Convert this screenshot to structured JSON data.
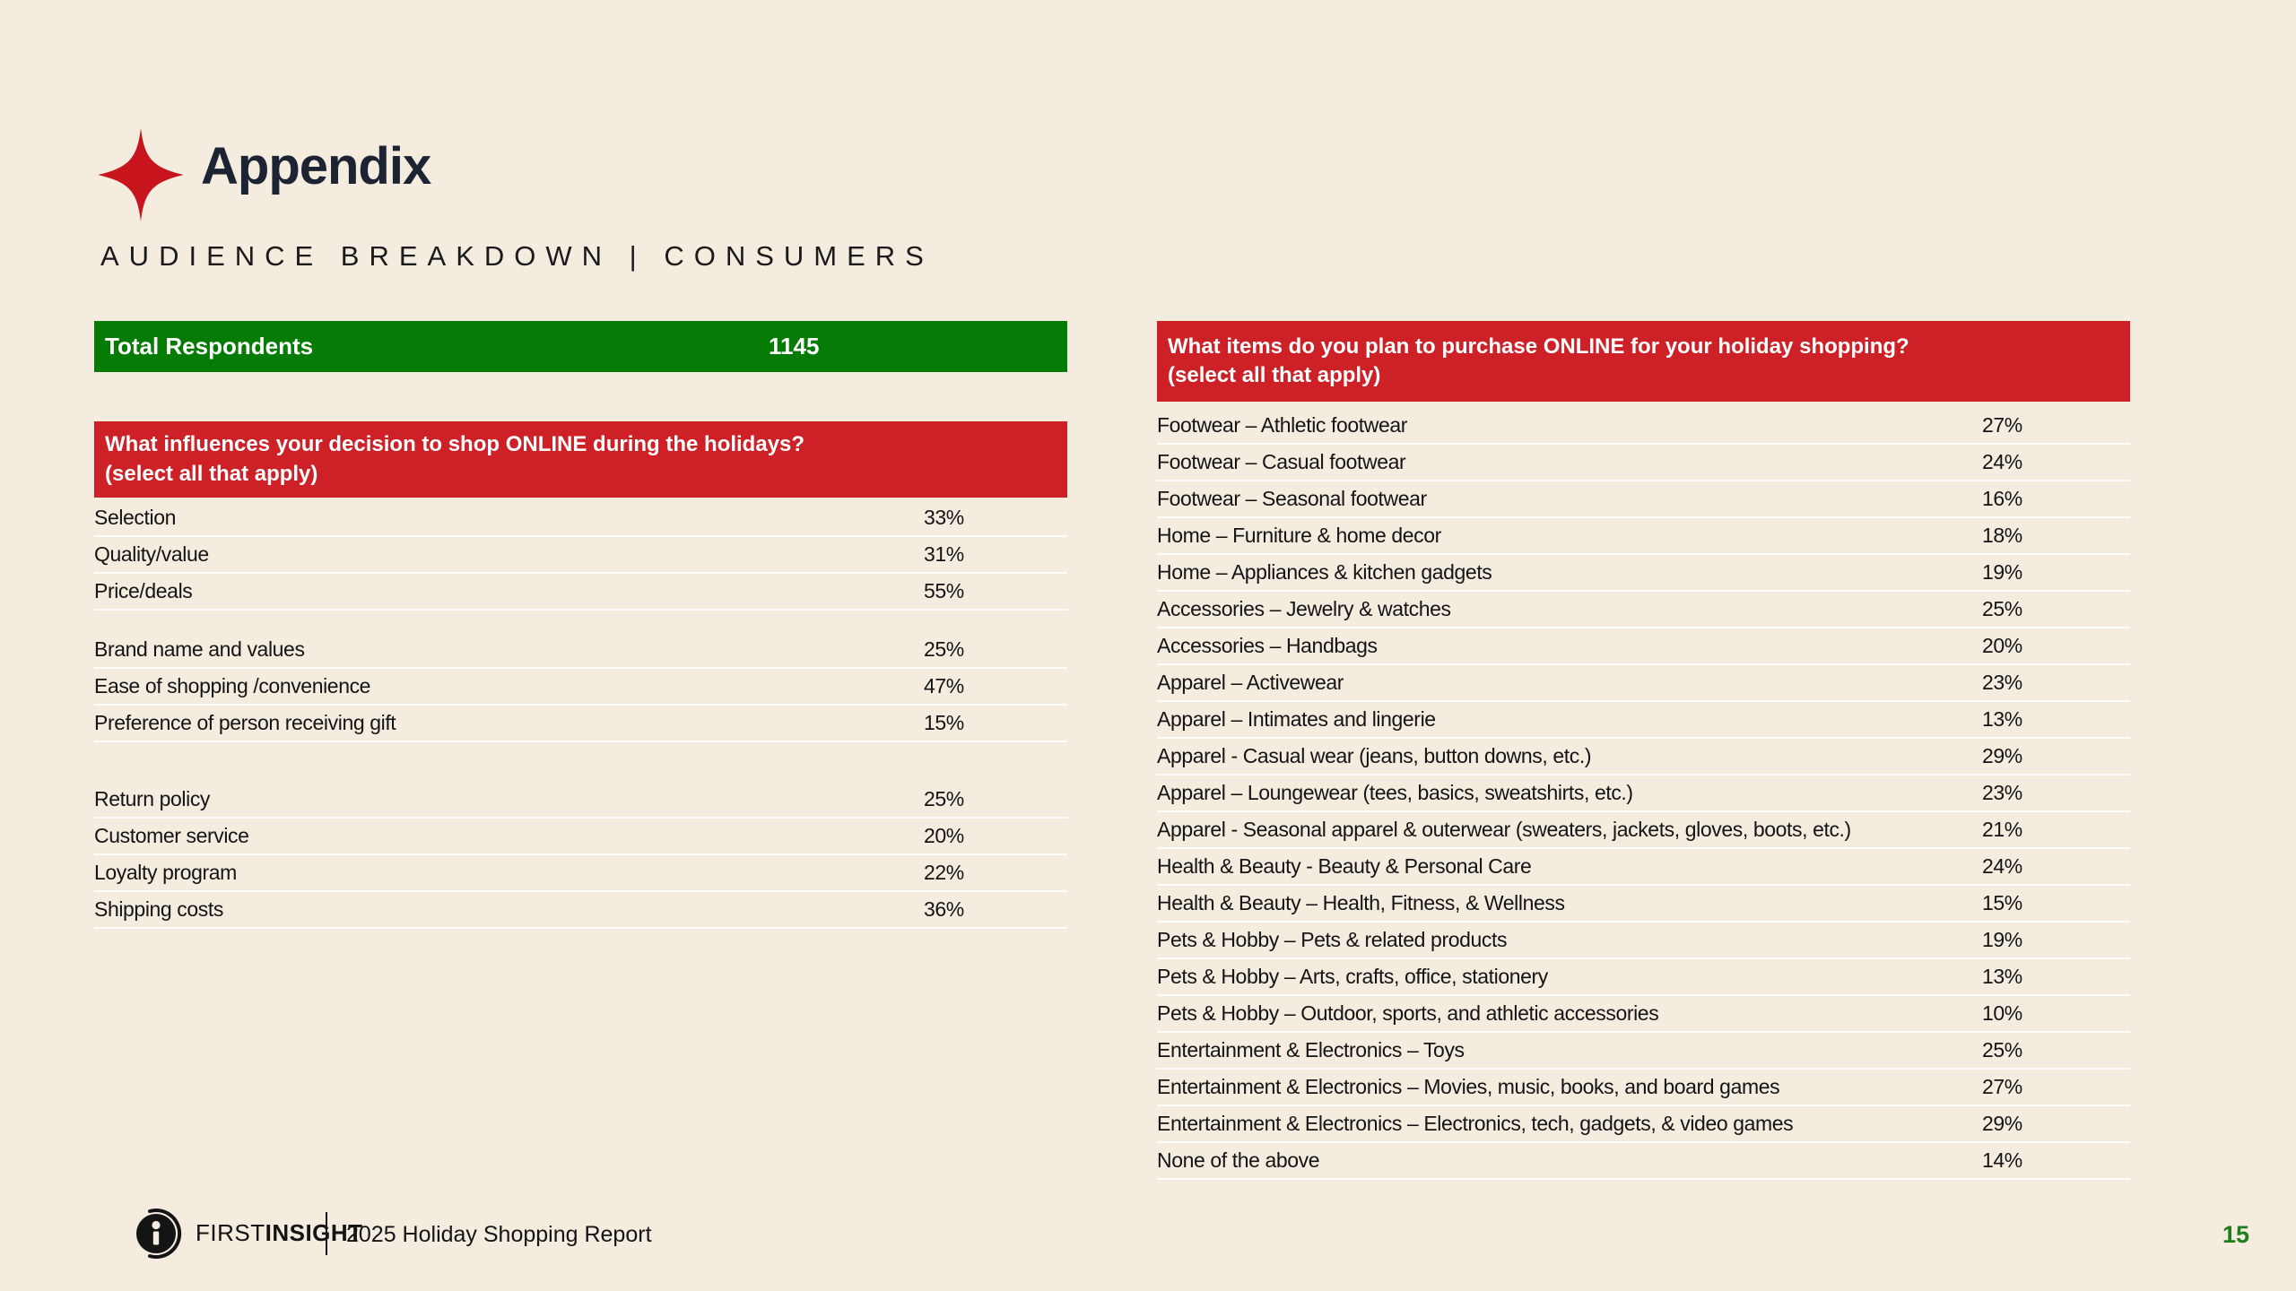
{
  "page": {
    "title": "Appendix",
    "subtitle": "AUDIENCE BREAKDOWN | CONSUMERS",
    "page_number": "15",
    "colors": {
      "background": "#f3ecdf",
      "header_red": "#ce2027",
      "totals_green": "#067c06",
      "title_navy": "#1c2433",
      "page_number_green": "#1f7d1f",
      "star_red": "#c8141c"
    },
    "icons": {
      "star": "four-point-sparkle",
      "logo": "first-insight-circle-i"
    }
  },
  "footer": {
    "brand_first": "FIRST",
    "brand_second": "INSIGHT",
    "report_name": "2025 Holiday Shopping Report"
  },
  "totals": {
    "label": "Total Respondents",
    "value": "1145"
  },
  "left_table": {
    "header_line1": "What influences your decision to shop ONLINE during the holidays?",
    "header_line2": "(select all that apply)",
    "rows": [
      {
        "label": "Selection",
        "value": "33%"
      },
      {
        "label": "Quality/value",
        "value": "31%"
      },
      {
        "label": "Price/deals",
        "value": "55%"
      },
      {
        "spacer": "small"
      },
      {
        "label": "Brand name and values",
        "value": "25%"
      },
      {
        "label": "Ease of shopping /convenience",
        "value": "47%"
      },
      {
        "label": "Preference of person receiving gift",
        "value": "15%"
      },
      {
        "spacer": "large"
      },
      {
        "label": "Return policy",
        "value": "25%"
      },
      {
        "label": "Customer service",
        "value": "20%"
      },
      {
        "label": "Loyalty program",
        "value": "22%"
      },
      {
        "label": "Shipping costs",
        "value": "36%"
      }
    ]
  },
  "right_table": {
    "header_line1": "What items do you plan to purchase ONLINE for your holiday shopping?",
    "header_line2": "(select all that apply)",
    "rows": [
      {
        "label": "Footwear – Athletic footwear",
        "value": "27%"
      },
      {
        "label": "Footwear – Casual footwear",
        "value": "24%"
      },
      {
        "label": "Footwear – Seasonal footwear",
        "value": "16%"
      },
      {
        "label": "Home – Furniture & home decor",
        "value": "18%"
      },
      {
        "label": "Home – Appliances & kitchen gadgets",
        "value": "19%"
      },
      {
        "label": "Accessories – Jewelry & watches",
        "value": "25%"
      },
      {
        "label": "Accessories – Handbags",
        "value": "20%"
      },
      {
        "label": "Apparel – Activewear",
        "value": "23%"
      },
      {
        "label": "Apparel – Intimates and lingerie",
        "value": "13%"
      },
      {
        "label": "Apparel - Casual wear (jeans, button downs, etc.)",
        "value": "29%"
      },
      {
        "label": "Apparel – Loungewear (tees, basics, sweatshirts, etc.)",
        "value": "23%"
      },
      {
        "label": "Apparel - Seasonal apparel & outerwear (sweaters, jackets, gloves, boots, etc.)",
        "value": "21%"
      },
      {
        "label": "Health & Beauty - Beauty & Personal Care",
        "value": "24%"
      },
      {
        "label": "Health & Beauty – Health, Fitness, & Wellness",
        "value": "15%"
      },
      {
        "label": "Pets & Hobby – Pets & related products",
        "value": "19%"
      },
      {
        "label": "Pets & Hobby – Arts, crafts, office, stationery",
        "value": "13%"
      },
      {
        "label": "Pets & Hobby – Outdoor, sports, and athletic accessories",
        "value": "10%"
      },
      {
        "label": "Entertainment & Electronics – Toys",
        "value": "25%"
      },
      {
        "label": "Entertainment & Electronics – Movies, music, books, and board games",
        "value": "27%"
      },
      {
        "label": "Entertainment & Electronics – Electronics, tech, gadgets, & video games",
        "value": "29%"
      },
      {
        "label": "None of the above",
        "value": "14%"
      }
    ]
  }
}
